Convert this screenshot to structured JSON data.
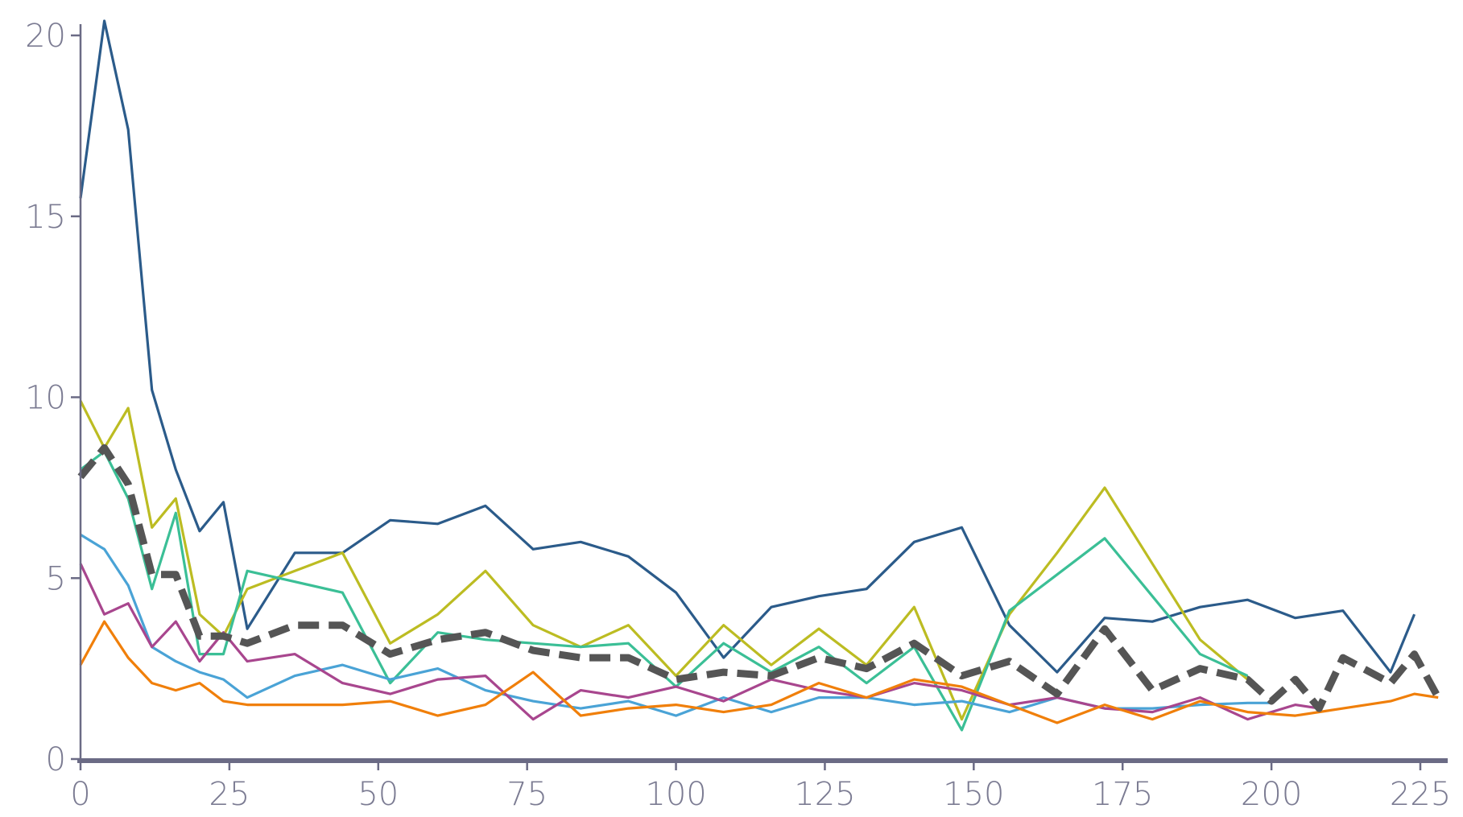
{
  "chart_data": {
    "type": "line",
    "title": "",
    "xlabel": "",
    "ylabel": "",
    "xlim": [
      0,
      228
    ],
    "ylim": [
      0,
      20.5
    ],
    "x_ticks": [
      0,
      25,
      50,
      75,
      100,
      125,
      150,
      175,
      200,
      225
    ],
    "y_ticks": [
      0,
      5,
      10,
      15,
      20
    ],
    "grid": false,
    "axis_color": "#6b6b85",
    "series": [
      {
        "color": "#2b5b8a",
        "dashed": false,
        "x": [
          0,
          4,
          8,
          12,
          16,
          20,
          24,
          28,
          36,
          44,
          52,
          60,
          68,
          76,
          84,
          92,
          100,
          108,
          116,
          124,
          132,
          140,
          148,
          156,
          164,
          172,
          180,
          188,
          196,
          204,
          212,
          220,
          224
        ],
        "y": [
          15.5,
          20.4,
          17.4,
          10.2,
          8.0,
          6.3,
          7.1,
          3.6,
          5.7,
          5.7,
          6.6,
          6.5,
          7.0,
          5.8,
          6.0,
          5.6,
          4.6,
          2.8,
          4.2,
          4.5,
          4.7,
          6.0,
          6.4,
          3.7,
          2.4,
          3.9,
          3.8,
          4.2,
          4.4,
          3.9,
          4.1,
          2.4,
          4.0
        ]
      },
      {
        "color": "#bcbc22",
        "dashed": false,
        "x": [
          0,
          4,
          8,
          12,
          16,
          20,
          24,
          28,
          36,
          44,
          52,
          60,
          68,
          76,
          84,
          92,
          100,
          108,
          116,
          124,
          132,
          140,
          148,
          156,
          164,
          172,
          180,
          188,
          196
        ],
        "y": [
          9.9,
          8.6,
          9.7,
          6.4,
          7.2,
          4.0,
          3.4,
          4.7,
          5.2,
          5.7,
          3.2,
          4.0,
          5.2,
          3.7,
          3.1,
          3.7,
          2.3,
          3.7,
          2.6,
          3.6,
          2.6,
          4.2,
          1.1,
          4.0,
          5.7,
          7.5,
          5.4,
          3.3,
          2.2
        ]
      },
      {
        "color": "#3bbf96",
        "dashed": false,
        "x": [
          0,
          4,
          8,
          12,
          16,
          20,
          24,
          28,
          36,
          44,
          52,
          60,
          68,
          76,
          84,
          92,
          100,
          108,
          116,
          124,
          132,
          140,
          148,
          156,
          164,
          172,
          180,
          188,
          196
        ],
        "y": [
          8.0,
          8.5,
          7.2,
          4.7,
          6.8,
          2.9,
          2.9,
          5.2,
          4.9,
          4.6,
          2.1,
          3.5,
          3.3,
          3.2,
          3.1,
          3.2,
          2.0,
          3.2,
          2.4,
          3.1,
          2.1,
          3.1,
          0.8,
          4.1,
          5.1,
          6.1,
          4.5,
          2.9,
          2.3
        ]
      },
      {
        "color": "#4aa3d6",
        "dashed": false,
        "x": [
          0,
          4,
          8,
          12,
          16,
          20,
          24,
          28,
          36,
          44,
          52,
          60,
          68,
          76,
          84,
          92,
          100,
          108,
          116,
          124,
          132,
          140,
          148,
          156,
          164,
          172,
          180,
          188,
          196,
          200
        ],
        "y": [
          6.2,
          5.8,
          4.8,
          3.1,
          2.7,
          2.4,
          2.2,
          1.7,
          2.3,
          2.6,
          2.2,
          2.5,
          1.9,
          1.6,
          1.4,
          1.6,
          1.2,
          1.7,
          1.3,
          1.7,
          1.7,
          1.5,
          1.6,
          1.3,
          1.7,
          1.4,
          1.4,
          1.5,
          1.55,
          1.55
        ]
      },
      {
        "color": "#a8468e",
        "dashed": false,
        "x": [
          0,
          4,
          8,
          12,
          16,
          20,
          24,
          28,
          36,
          44,
          52,
          60,
          68,
          76,
          84,
          92,
          100,
          108,
          116,
          124,
          132,
          140,
          148,
          156,
          164,
          172,
          180,
          188,
          196,
          204,
          208
        ],
        "y": [
          5.4,
          4.0,
          4.3,
          3.1,
          3.8,
          2.7,
          3.5,
          2.7,
          2.9,
          2.1,
          1.8,
          2.2,
          2.3,
          1.1,
          1.9,
          1.7,
          2.0,
          1.6,
          2.2,
          1.9,
          1.7,
          2.1,
          1.9,
          1.5,
          1.7,
          1.4,
          1.3,
          1.7,
          1.1,
          1.5,
          1.4
        ]
      },
      {
        "color": "#f07f0a",
        "dashed": false,
        "x": [
          0,
          4,
          8,
          12,
          16,
          20,
          24,
          28,
          36,
          44,
          52,
          60,
          68,
          76,
          84,
          92,
          100,
          108,
          116,
          124,
          132,
          140,
          148,
          156,
          164,
          172,
          180,
          188,
          196,
          204,
          212,
          220,
          224,
          228
        ],
        "y": [
          2.6,
          3.8,
          2.8,
          2.1,
          1.9,
          2.1,
          1.6,
          1.5,
          1.5,
          1.5,
          1.6,
          1.2,
          1.5,
          2.4,
          1.2,
          1.4,
          1.5,
          1.3,
          1.5,
          2.1,
          1.7,
          2.2,
          2.0,
          1.5,
          1.0,
          1.5,
          1.1,
          1.6,
          1.3,
          1.2,
          1.4,
          1.6,
          1.8,
          1.7
        ]
      },
      {
        "color": "#555555",
        "dashed": true,
        "x": [
          0,
          4,
          8,
          12,
          16,
          20,
          24,
          28,
          36,
          44,
          52,
          60,
          68,
          76,
          84,
          92,
          100,
          108,
          116,
          124,
          132,
          140,
          148,
          156,
          164,
          172,
          180,
          188,
          196,
          200,
          204,
          208,
          212,
          220,
          224,
          228
        ],
        "y": [
          7.8,
          8.6,
          7.6,
          5.1,
          5.1,
          3.4,
          3.4,
          3.2,
          3.7,
          3.7,
          2.9,
          3.3,
          3.5,
          3.0,
          2.8,
          2.8,
          2.2,
          2.4,
          2.3,
          2.8,
          2.5,
          3.2,
          2.3,
          2.7,
          1.8,
          3.6,
          1.9,
          2.5,
          2.2,
          1.6,
          2.2,
          1.4,
          2.8,
          2.1,
          2.9,
          1.7
        ]
      }
    ]
  }
}
